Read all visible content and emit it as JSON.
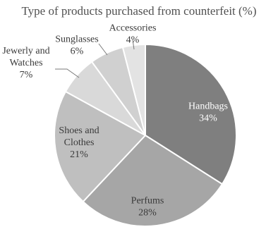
{
  "chart_data": {
    "type": "pie",
    "title": "Type of products purchased from counterfeit (%)",
    "slices": [
      {
        "label": "Handbags",
        "label_lines": [
          "Handbags"
        ],
        "value": 34,
        "value_text": "34%",
        "color": "#7f7f7f",
        "label_style": "inside-dark"
      },
      {
        "label": "Perfums",
        "label_lines": [
          "Perfums"
        ],
        "value": 28,
        "value_text": "28%",
        "color": "#a6a6a6",
        "label_style": "inside"
      },
      {
        "label": "Shoes and Clothes",
        "label_lines": [
          "Shoes and",
          "Clothes"
        ],
        "value": 21,
        "value_text": "21%",
        "color": "#bfbfbf",
        "label_style": "inside"
      },
      {
        "label": "Jewerly and Watches",
        "label_lines": [
          "Jewerly  and",
          "Watches"
        ],
        "value": 7,
        "value_text": "7%",
        "color": "#d9d9d9",
        "label_style": "outside"
      },
      {
        "label": "Sunglasses",
        "label_lines": [
          "Sunglasses"
        ],
        "value": 6,
        "value_text": "6%",
        "color": "#d0d0d0",
        "label_style": "outside"
      },
      {
        "label": "Accessories",
        "label_lines": [
          "Accessories"
        ],
        "value": 4,
        "value_text": "4%",
        "color": "#e3e3e3",
        "label_style": "outside"
      }
    ],
    "start_angle": "12 o'clock",
    "direction": "clockwise",
    "legend": "none"
  }
}
